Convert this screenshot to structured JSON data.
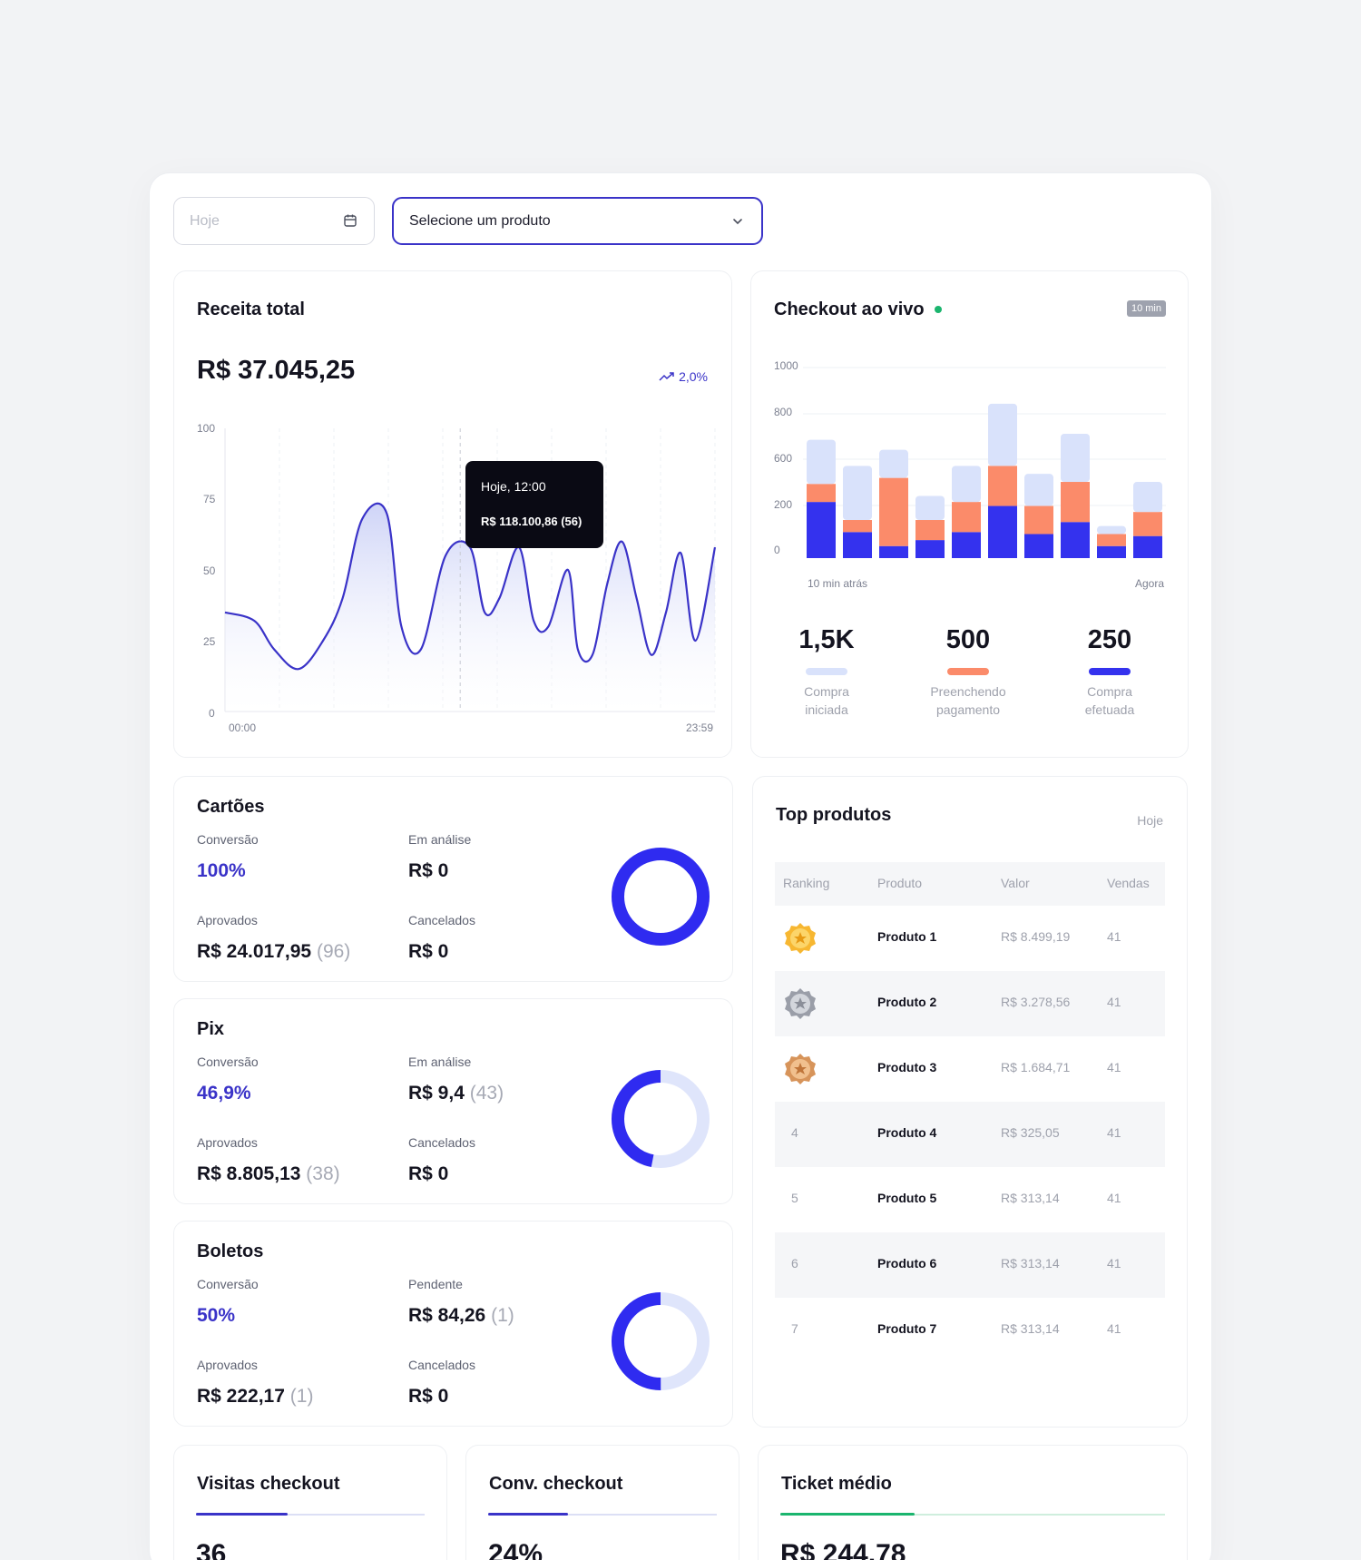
{
  "filters": {
    "date_placeholder": "Hoje",
    "product_select": "Selecione um produto"
  },
  "receita": {
    "title": "Receita total",
    "amount": "R$ 37.045,25",
    "trend": "2,0%",
    "tooltip": {
      "time": "Hoje, 12:00",
      "value": "R$ 118.100,86  (56)"
    },
    "chart_data": {
      "type": "area",
      "y_ticks": [
        "100",
        "75",
        "50",
        "25",
        "0"
      ],
      "x_ticks": [
        "00:00",
        "23:59"
      ],
      "ylim": [
        0,
        100
      ],
      "x": [
        0,
        0.06,
        0.1,
        0.15,
        0.2,
        0.24,
        0.28,
        0.33,
        0.36,
        0.4,
        0.45,
        0.5,
        0.53,
        0.56,
        0.6,
        0.63,
        0.66,
        0.7,
        0.72,
        0.75,
        0.78,
        0.81,
        0.84,
        0.87,
        0.9,
        0.93,
        0.96,
        1.0
      ],
      "values": [
        35,
        32,
        22,
        15,
        25,
        40,
        68,
        70,
        30,
        22,
        55,
        58,
        35,
        40,
        58,
        32,
        30,
        50,
        22,
        20,
        45,
        60,
        40,
        20,
        35,
        56,
        25,
        58
      ],
      "line_color": "#3a33c8"
    }
  },
  "checkout": {
    "title": "Checkout ao vivo",
    "badge": "10 min",
    "chart_data": {
      "type": "bar",
      "stacked": true,
      "y_ticks": [
        "1000",
        "800",
        "600",
        "200",
        "0"
      ],
      "x_start": "10 min atrás",
      "x_end": "Agora",
      "series": [
        {
          "name": "Compra efetuada",
          "color": "#3432ee",
          "values": [
            280,
            130,
            60,
            90,
            130,
            260,
            120,
            180,
            60,
            110
          ]
        },
        {
          "name": "Preenchendo pagamento",
          "color": "#fb8b6a",
          "values": [
            90,
            60,
            340,
            100,
            150,
            200,
            140,
            200,
            60,
            120
          ]
        },
        {
          "name": "Compra iniciada",
          "color": "#d9e2fb",
          "values": [
            220,
            270,
            140,
            120,
            180,
            310,
            160,
            240,
            40,
            150
          ]
        }
      ]
    },
    "stats": [
      {
        "value": "1,5K",
        "label": "Compra iniciada",
        "color": "#d9e2fb"
      },
      {
        "value": "500",
        "label": "Preenchendo pagamento",
        "color": "#fb8b6a"
      },
      {
        "value": "250",
        "label": "Compra efetuada",
        "color": "#3432ee"
      }
    ]
  },
  "cartoes": {
    "title": "Cartões",
    "conv_label": "Conversão",
    "conv_value": "100%",
    "b_label": "Em análise",
    "b_value": "R$ 0",
    "b_count": "",
    "aprov_label": "Aprovados",
    "aprov_value": "R$ 24.017,95",
    "aprov_count": "(96)",
    "canc_label": "Cancelados",
    "canc_value": "R$ 0",
    "donut_fraction": 1.0
  },
  "pix": {
    "title": "Pix",
    "conv_label": "Conversão",
    "conv_value": "46,9%",
    "b_label": "Em análise",
    "b_value": "R$ 9,4",
    "b_count": "(43)",
    "aprov_label": "Aprovados",
    "aprov_value": "R$ 8.805,13",
    "aprov_count": "(38)",
    "canc_label": "Cancelados",
    "canc_value": "R$ 0",
    "donut_fraction": 0.469
  },
  "boletos": {
    "title": "Boletos",
    "conv_label": "Conversão",
    "conv_value": "50%",
    "b_label": "Pendente",
    "b_value": "R$ 84,26",
    "b_count": "(1)",
    "aprov_label": "Aprovados",
    "aprov_value": "R$ 222,17",
    "aprov_count": "(1)",
    "canc_label": "Cancelados",
    "canc_value": "R$ 0",
    "donut_fraction": 0.5
  },
  "top": {
    "title": "Top produtos",
    "period": "Hoje",
    "headers": [
      "Ranking",
      "Produto",
      "Valor",
      "Vendas"
    ],
    "rows": [
      {
        "rank": "1",
        "medal": "gold-medal-icon",
        "product": "Produto 1",
        "value": "R$ 8.499,19",
        "sales": "41"
      },
      {
        "rank": "2",
        "medal": "silver-medal-icon",
        "product": "Produto 2",
        "value": "R$ 3.278,56",
        "sales": "41"
      },
      {
        "rank": "3",
        "medal": "bronze-medal-icon",
        "product": "Produto 3",
        "value": "R$ 1.684,71",
        "sales": "41"
      },
      {
        "rank": "4",
        "product": "Produto 4",
        "value": "R$ 325,05",
        "sales": "41"
      },
      {
        "rank": "5",
        "product": "Produto 5",
        "value": "R$ 313,14",
        "sales": "41"
      },
      {
        "rank": "6",
        "product": "Produto 6",
        "value": "R$ 313,14",
        "sales": "41"
      },
      {
        "rank": "7",
        "product": "Produto 7",
        "value": "R$ 313,14",
        "sales": "41"
      }
    ]
  },
  "kpis": [
    {
      "title": "Visitas checkout",
      "value": "36",
      "progress": 0.4,
      "color": "#3a33c8"
    },
    {
      "title": "Conv. checkout",
      "value": "24%",
      "progress": 0.35,
      "color": "#3a33c8"
    },
    {
      "title": "Ticket médio",
      "value": "R$ 244,78",
      "progress": 0.35,
      "color": "#1bb56e"
    }
  ]
}
